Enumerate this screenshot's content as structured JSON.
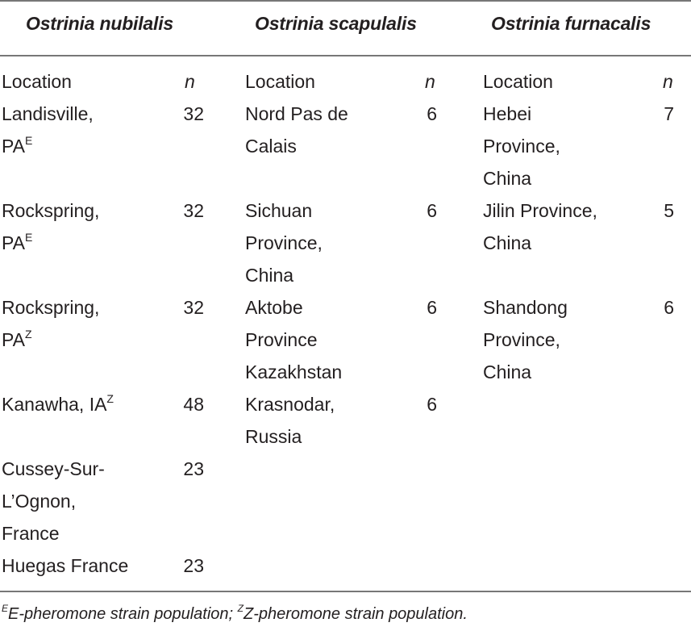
{
  "headers": {
    "col1": "Ostrinia nubilalis",
    "col2": "Ostrinia scapulalis",
    "col3": "Ostrinia furnacalis"
  },
  "subheaders": {
    "location": "Location",
    "n": "n"
  },
  "nubilalis": [
    {
      "lines": [
        "Landisville,",
        "PA"
      ],
      "sup": "E",
      "n": "32"
    },
    {
      "lines": [
        "Rockspring,",
        "PA"
      ],
      "sup": "E",
      "n": "32"
    },
    {
      "lines": [
        "Rockspring,",
        "PA"
      ],
      "sup": "Z",
      "n": "32"
    },
    {
      "lines": [
        "Kanawha, IA"
      ],
      "sup": "Z",
      "n": "48"
    },
    {
      "lines": [
        "Cussey-Sur-",
        "L’Ognon,",
        "France"
      ],
      "n": "23"
    },
    {
      "lines": [
        "Huegas France"
      ],
      "n": "23"
    }
  ],
  "scapulalis": [
    {
      "lines": [
        "Nord Pas de",
        "Calais"
      ],
      "n": "6"
    },
    {
      "lines": [
        "Sichuan",
        "Province,",
        "China"
      ],
      "n": "6"
    },
    {
      "lines": [
        "Aktobe",
        "Province",
        "Kazakhstan"
      ],
      "n": "6"
    },
    {
      "lines": [
        "Krasnodar,",
        "Russia"
      ],
      "n": "6"
    }
  ],
  "furnacalis": [
    {
      "lines": [
        "Hebei",
        "Province,",
        "China"
      ],
      "n": "7"
    },
    {
      "lines": [
        "Jilin Province,",
        "China"
      ],
      "n": "5"
    },
    {
      "lines": [
        "Shandong",
        "Province,",
        "China"
      ],
      "n": "6"
    }
  ],
  "footnote": {
    "e_sup": "E",
    "e_text": "E-pheromone strain population; ",
    "z_sup": "Z",
    "z_text": "Z-pheromone strain population."
  }
}
